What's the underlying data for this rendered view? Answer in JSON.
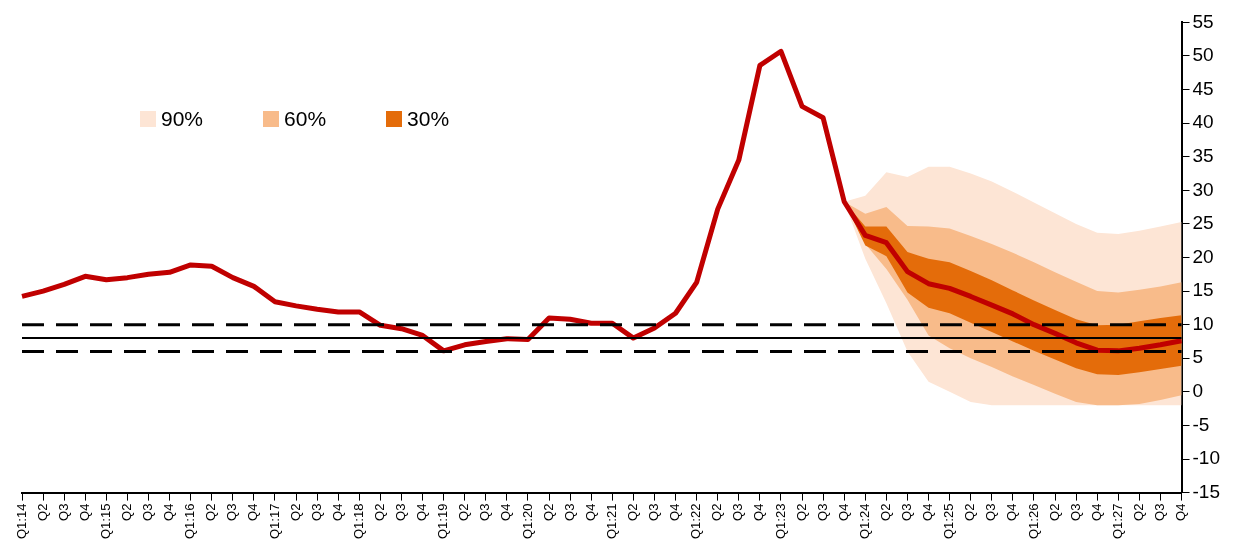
{
  "chart_data": {
    "type": "line",
    "categories": [
      "Q1:14",
      "Q2",
      "Q3",
      "Q4",
      "Q1:15",
      "Q2",
      "Q3",
      "Q4",
      "Q1:16",
      "Q2",
      "Q3",
      "Q4",
      "Q1:17",
      "Q2",
      "Q3",
      "Q4",
      "Q1:18",
      "Q2",
      "Q3",
      "Q4",
      "Q1:19",
      "Q2",
      "Q3",
      "Q4",
      "Q1:20",
      "Q2",
      "Q3",
      "Q4",
      "Q1:21",
      "Q2",
      "Q3",
      "Q4",
      "Q1:22",
      "Q2",
      "Q3",
      "Q4",
      "Q1:23",
      "Q2",
      "Q3",
      "Q4",
      "Q1:24",
      "Q2",
      "Q3",
      "Q4",
      "Q1:25",
      "Q2",
      "Q3",
      "Q4",
      "Q1:26",
      "Q2",
      "Q3",
      "Q4",
      "Q1:27",
      "Q2",
      "Q3",
      "Q4"
    ],
    "series": [
      {
        "type": "area",
        "name": "90%",
        "color": "#fde5d5",
        "values": [
          null,
          null,
          null,
          null,
          null,
          null,
          null,
          null,
          null,
          null,
          null,
          null,
          null,
          null,
          null,
          null,
          null,
          null,
          null,
          null,
          null,
          null,
          null,
          null,
          null,
          null,
          null,
          null,
          null,
          null,
          null,
          null,
          null,
          null,
          null,
          null,
          null,
          null,
          null,
          null,
          null,
          null,
          null,
          null,
          null,
          null,
          null,
          null,
          null,
          null,
          null,
          null,
          null,
          null,
          null,
          null
        ],
        "lower": [
          null,
          null,
          null,
          null,
          null,
          null,
          null,
          null,
          null,
          null,
          null,
          null,
          null,
          null,
          null,
          null,
          null,
          null,
          null,
          null,
          null,
          null,
          null,
          null,
          null,
          null,
          null,
          null,
          null,
          null,
          null,
          null,
          null,
          null,
          null,
          null,
          null,
          null,
          null,
          28.3,
          19.8,
          13.2,
          6,
          1.5,
          0,
          -1.5,
          -2,
          -2,
          -2,
          -2,
          -2,
          -2,
          -2,
          -2,
          -2,
          -2
        ],
        "upper": [
          null,
          null,
          null,
          null,
          null,
          null,
          null,
          null,
          null,
          null,
          null,
          null,
          null,
          null,
          null,
          null,
          null,
          null,
          null,
          null,
          null,
          null,
          null,
          null,
          null,
          null,
          null,
          null,
          null,
          null,
          null,
          null,
          null,
          null,
          null,
          null,
          null,
          null,
          null,
          28.3,
          29.2,
          32.7,
          32,
          33.5,
          33.5,
          32.5,
          31.3,
          29.8,
          28.2,
          26.6,
          25,
          23.7,
          23.5,
          24,
          24.6,
          25.3
        ]
      },
      {
        "type": "area",
        "name": "60%",
        "color": "#f8bb8a",
        "values": [
          null,
          null,
          null,
          null,
          null,
          null,
          null,
          null,
          null,
          null,
          null,
          null,
          null,
          null,
          null,
          null,
          null,
          null,
          null,
          null,
          null,
          null,
          null,
          null,
          null,
          null,
          null,
          null,
          null,
          null,
          null,
          null,
          null,
          null,
          null,
          null,
          null,
          null,
          null,
          null,
          null,
          null,
          null,
          null,
          null,
          null,
          null,
          null,
          null,
          null,
          null,
          null,
          null,
          null,
          null,
          null
        ],
        "lower": [
          null,
          null,
          null,
          null,
          null,
          null,
          null,
          null,
          null,
          null,
          null,
          null,
          null,
          null,
          null,
          null,
          null,
          null,
          null,
          null,
          null,
          null,
          null,
          null,
          null,
          null,
          null,
          null,
          null,
          null,
          null,
          null,
          null,
          null,
          null,
          null,
          null,
          null,
          null,
          28.3,
          22,
          18.3,
          13.7,
          8.4,
          6.5,
          5,
          3.7,
          2.3,
          1,
          -0.3,
          -1.5,
          -2,
          -2,
          -1.8,
          -1.2,
          -0.5
        ],
        "upper": [
          null,
          null,
          null,
          null,
          null,
          null,
          null,
          null,
          null,
          null,
          null,
          null,
          null,
          null,
          null,
          null,
          null,
          null,
          null,
          null,
          null,
          null,
          null,
          null,
          null,
          null,
          null,
          null,
          null,
          null,
          null,
          null,
          null,
          null,
          null,
          null,
          null,
          null,
          null,
          28.3,
          26.5,
          27.5,
          24.7,
          24.6,
          24.3,
          23.2,
          22,
          20.7,
          19.3,
          17.8,
          16.4,
          15,
          14.8,
          15.2,
          15.7,
          16.3
        ]
      },
      {
        "type": "area",
        "name": "30%",
        "color": "#e46c0a",
        "values": [
          null,
          null,
          null,
          null,
          null,
          null,
          null,
          null,
          null,
          null,
          null,
          null,
          null,
          null,
          null,
          null,
          null,
          null,
          null,
          null,
          null,
          null,
          null,
          null,
          null,
          null,
          null,
          null,
          null,
          null,
          null,
          null,
          null,
          null,
          null,
          null,
          null,
          null,
          null,
          null,
          null,
          null,
          null,
          null,
          null,
          null,
          null,
          null,
          null,
          null,
          null,
          null,
          null,
          null,
          null,
          null
        ],
        "lower": [
          null,
          null,
          null,
          null,
          null,
          null,
          null,
          null,
          null,
          null,
          null,
          null,
          null,
          null,
          null,
          null,
          null,
          null,
          null,
          null,
          null,
          null,
          null,
          null,
          null,
          null,
          null,
          null,
          null,
          null,
          null,
          null,
          null,
          null,
          null,
          null,
          null,
          null,
          null,
          28.3,
          21.8,
          20.2,
          14.8,
          12.5,
          11.7,
          10.3,
          8.9,
          7.5,
          6.1,
          4.8,
          3.5,
          2.6,
          2.5,
          2.9,
          3.4,
          3.9
        ],
        "upper": [
          null,
          null,
          null,
          null,
          null,
          null,
          null,
          null,
          null,
          null,
          null,
          null,
          null,
          null,
          null,
          null,
          null,
          null,
          null,
          null,
          null,
          null,
          null,
          null,
          null,
          null,
          null,
          null,
          null,
          null,
          null,
          null,
          null,
          null,
          null,
          null,
          null,
          null,
          null,
          28.3,
          24.6,
          24.6,
          20.8,
          19.8,
          19.3,
          18,
          16.6,
          15.1,
          13.6,
          12.2,
          10.8,
          9.9,
          10,
          10.5,
          11,
          11.4
        ]
      },
      {
        "type": "line",
        "color": "#c00000",
        "values": [
          14.2,
          15,
          16,
          17.2,
          16.7,
          17,
          17.5,
          17.8,
          18.9,
          18.7,
          17,
          15.7,
          13.4,
          12.8,
          12.3,
          11.9,
          11.9,
          9.9,
          9.4,
          8.4,
          6.1,
          7,
          7.5,
          7.9,
          7.8,
          11,
          10.8,
          10.2,
          10.2,
          8,
          9.5,
          11.7,
          16.3,
          27.2,
          34.5,
          48.6,
          50.7,
          42.5,
          40.8,
          28.3,
          23.3,
          22.2,
          17.9,
          16.1,
          15.4,
          14.2,
          12.9,
          11.6,
          10,
          8.7,
          7.3,
          6.2,
          6.1,
          6.5,
          7,
          7.6
        ]
      }
    ],
    "ref_lines": [
      {
        "axis": "y",
        "value": 10,
        "color": "#000000",
        "line_style": "dashed"
      },
      {
        "axis": "y",
        "value": 8,
        "color": "#000000",
        "line_style": "solid"
      },
      {
        "axis": "y",
        "value": 6,
        "color": "#000000",
        "line_style": "dashed"
      }
    ],
    "ylim": [
      -15,
      55
    ],
    "yticks": [
      -15,
      -10,
      -5,
      0,
      5,
      10,
      15,
      20,
      25,
      30,
      35,
      40,
      45,
      50,
      55
    ],
    "grid": false,
    "legend": "top left",
    "marker": "none",
    "line_style": "solid"
  }
}
